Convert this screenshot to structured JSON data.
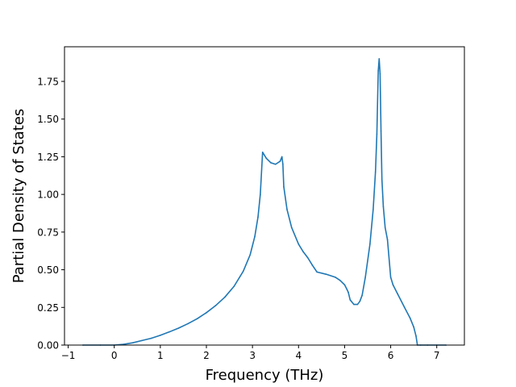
{
  "chart_data": {
    "type": "line",
    "title": "",
    "xlabel": "Frequency (THz)",
    "ylabel": "Partial Density of States",
    "xlim": [
      -1.08,
      7.6
    ],
    "ylim": [
      0.0,
      1.98
    ],
    "xticks": [
      -1,
      0,
      1,
      2,
      3,
      4,
      5,
      6,
      7
    ],
    "xtick_labels": [
      "−1",
      "0",
      "1",
      "2",
      "3",
      "4",
      "5",
      "6",
      "7"
    ],
    "yticks": [
      0.0,
      0.25,
      0.5,
      0.75,
      1.0,
      1.25,
      1.5,
      1.75
    ],
    "ytick_labels": [
      "0.00",
      "0.25",
      "0.50",
      "0.75",
      "1.00",
      "1.25",
      "1.50",
      "1.75"
    ],
    "grid": false,
    "legend": "none",
    "series": [
      {
        "color": "#1f77b4",
        "x": [
          -0.68,
          -0.3,
          0.0,
          0.2,
          0.4,
          0.6,
          0.8,
          1.0,
          1.2,
          1.4,
          1.6,
          1.8,
          2.0,
          2.2,
          2.4,
          2.6,
          2.8,
          2.95,
          3.05,
          3.12,
          3.17,
          3.22,
          3.3,
          3.4,
          3.5,
          3.6,
          3.64,
          3.66,
          3.68,
          3.75,
          3.85,
          4.0,
          4.1,
          4.2,
          4.3,
          4.4,
          4.6,
          4.8,
          4.9,
          5.0,
          5.05,
          5.08,
          5.12,
          5.2,
          5.28,
          5.33,
          5.38,
          5.45,
          5.55,
          5.62,
          5.67,
          5.7,
          5.73,
          5.75,
          5.77,
          5.79,
          5.81,
          5.84,
          5.88,
          5.93,
          6.0,
          6.05,
          6.15,
          6.3,
          6.42,
          6.5,
          6.55,
          6.58,
          6.65,
          6.8,
          7.0,
          7.2
        ],
        "y": [
          0.0,
          0.0,
          0.0,
          0.005,
          0.015,
          0.03,
          0.045,
          0.065,
          0.088,
          0.113,
          0.142,
          0.175,
          0.215,
          0.262,
          0.318,
          0.39,
          0.49,
          0.6,
          0.72,
          0.85,
          1.0,
          1.28,
          1.24,
          1.21,
          1.2,
          1.22,
          1.25,
          1.2,
          1.05,
          0.9,
          0.78,
          0.67,
          0.62,
          0.58,
          0.53,
          0.485,
          0.47,
          0.45,
          0.43,
          0.4,
          0.37,
          0.35,
          0.3,
          0.27,
          0.27,
          0.29,
          0.33,
          0.45,
          0.67,
          0.9,
          1.15,
          1.4,
          1.82,
          1.9,
          1.8,
          1.42,
          1.1,
          0.92,
          0.78,
          0.7,
          0.45,
          0.4,
          0.34,
          0.25,
          0.18,
          0.12,
          0.06,
          0.0,
          0.0,
          0.0,
          0.0,
          0.0
        ]
      }
    ]
  }
}
